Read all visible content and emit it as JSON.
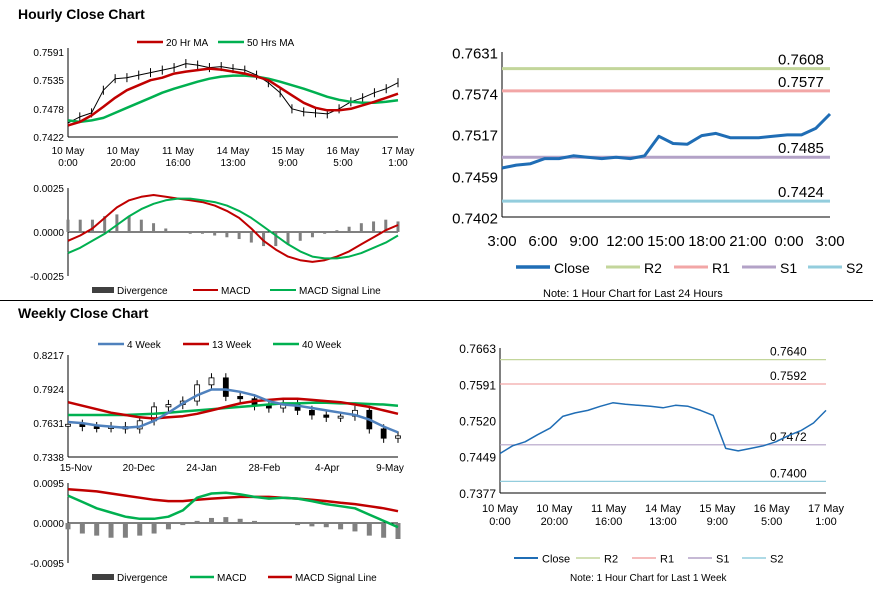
{
  "sections": {
    "hourly_title": "Hourly Close Chart",
    "weekly_title": "Weekly Close Chart"
  },
  "colors": {
    "ma_red": "#c00000",
    "ma_green": "#00b050",
    "ma_blue": "#4f81bd",
    "close_blue": "#1f6db5",
    "r2": "#c3d69b",
    "r1": "#f2a6a6",
    "s1": "#b3a2c7",
    "s2": "#93cddd",
    "divergence": "#808080"
  },
  "notes": {
    "hourly_note": "Note: 1 Hour Chart for Last 24 Hours",
    "weekly_note": "Note: 1 Hour Chart for Last 1 Week"
  },
  "chart_data": [
    {
      "id": "hourly-price",
      "type": "line",
      "title": "Hourly Close Chart",
      "x_ticks": [
        "10 May\n0:00",
        "10 May\n20:00",
        "11 May\n16:00",
        "14 May\n13:00",
        "15 May\n9:00",
        "16 May\n5:00",
        "17 May\n1:00"
      ],
      "y_ticks": [
        "0.7591",
        "0.7535",
        "0.7478",
        "0.7422"
      ],
      "ylim": [
        0.7422,
        0.7591
      ],
      "legend": [
        "20 Hr MA",
        "50 Hrs MA"
      ],
      "series": [
        {
          "name": "Close",
          "values": [
            0.745,
            0.7462,
            0.747,
            0.7515,
            0.7538,
            0.754,
            0.7545,
            0.755,
            0.7555,
            0.756,
            0.7568,
            0.7565,
            0.756,
            0.7562,
            0.7558,
            0.7555,
            0.7545,
            0.753,
            0.751,
            0.7478,
            0.7472,
            0.747,
            0.7468,
            0.7478,
            0.7492,
            0.75,
            0.751,
            0.7518,
            0.753
          ]
        },
        {
          "name": "20 Hr MA",
          "values": [
            0.7445,
            0.7452,
            0.7465,
            0.7482,
            0.75,
            0.7515,
            0.7525,
            0.7535,
            0.754,
            0.7548,
            0.7552,
            0.7555,
            0.7558,
            0.7556,
            0.7552,
            0.7548,
            0.7542,
            0.7535,
            0.752,
            0.7505,
            0.749,
            0.748,
            0.7475,
            0.7475,
            0.7478,
            0.7485,
            0.7492,
            0.75,
            0.7508
          ]
        },
        {
          "name": "50 Hrs MA",
          "values": [
            0.7455,
            0.7452,
            0.7455,
            0.746,
            0.747,
            0.748,
            0.749,
            0.75,
            0.751,
            0.7518,
            0.7525,
            0.7532,
            0.7538,
            0.7542,
            0.7544,
            0.7544,
            0.7542,
            0.7538,
            0.7532,
            0.7525,
            0.7518,
            0.751,
            0.7502,
            0.7496,
            0.7492,
            0.749,
            0.749,
            0.7492,
            0.7495
          ]
        }
      ]
    },
    {
      "id": "hourly-macd",
      "type": "line",
      "y_ticks": [
        "0.0025",
        "0.0000",
        "-0.0025"
      ],
      "ylim": [
        -0.0025,
        0.0025
      ],
      "legend": [
        "Divergence",
        "MACD",
        "MACD Signal Line"
      ],
      "series": [
        {
          "name": "MACD",
          "values": [
            -0.0005,
            -0.0002,
            0.0002,
            0.0008,
            0.0014,
            0.0018,
            0.002,
            0.0021,
            0.002,
            0.0019,
            0.0018,
            0.0017,
            0.0015,
            0.0012,
            0.0008,
            0.0002,
            -0.0005,
            -0.001,
            -0.0014,
            -0.0016,
            -0.0017,
            -0.0016,
            -0.0014,
            -0.0011,
            -0.0007,
            -0.0003,
            0.0001,
            0.0004
          ]
        },
        {
          "name": "MACD Signal Line",
          "values": [
            -0.0012,
            -0.0009,
            -0.0005,
            -0.0001,
            0.0004,
            0.0009,
            0.0013,
            0.0016,
            0.0018,
            0.0019,
            0.0019,
            0.0018,
            0.0017,
            0.0015,
            0.0012,
            0.0008,
            0.0003,
            -0.0002,
            -0.0007,
            -0.0011,
            -0.0014,
            -0.0015,
            -0.0015,
            -0.0014,
            -0.0012,
            -0.0009,
            -0.0006,
            -0.0002
          ]
        },
        {
          "name": "Divergence",
          "values": [
            0.0007,
            0.0007,
            0.0007,
            0.0009,
            0.001,
            0.0009,
            0.0007,
            0.0005,
            0.0002,
            0.0,
            -0.0001,
            -0.0001,
            -0.0002,
            -0.0003,
            -0.0004,
            -0.0006,
            -0.0008,
            -0.0008,
            -0.0007,
            -0.0005,
            -0.0003,
            -0.0001,
            0.0001,
            0.0003,
            0.0005,
            0.0006,
            0.0007,
            0.0006
          ]
        }
      ]
    },
    {
      "id": "hourly-24h",
      "type": "line",
      "x_ticks": [
        "3:00",
        "6:00",
        "9:00",
        "12:00",
        "15:00",
        "18:00",
        "21:00",
        "0:00",
        "3:00"
      ],
      "y_ticks": [
        "0.7631",
        "0.7574",
        "0.7517",
        "0.7459",
        "0.7402"
      ],
      "ylim": [
        0.7402,
        0.7631
      ],
      "levels": {
        "R2": "0.7608",
        "R1": "0.7577",
        "S1": "0.7485",
        "S2": "0.7424"
      },
      "legend": [
        "Close",
        "R2",
        "R1",
        "S1",
        "S2"
      ],
      "series": [
        {
          "name": "Close",
          "values": [
            0.747,
            0.7474,
            0.7476,
            0.7483,
            0.7483,
            0.7487,
            0.7485,
            0.7483,
            0.7485,
            0.7483,
            0.7487,
            0.7514,
            0.7504,
            0.7503,
            0.7515,
            0.7518,
            0.7512,
            0.7512,
            0.7512,
            0.7514,
            0.7516,
            0.7516,
            0.7525,
            0.7545
          ]
        }
      ]
    },
    {
      "id": "weekly-price",
      "type": "line",
      "title": "Weekly Close Chart",
      "x_ticks": [
        "15-Nov",
        "20-Dec",
        "24-Jan",
        "28-Feb",
        "4-Apr",
        "9-May"
      ],
      "y_ticks": [
        "0.8217",
        "0.7924",
        "0.7631",
        "0.7338"
      ],
      "ylim": [
        0.7338,
        0.8217
      ],
      "legend": [
        "4 Week",
        "13 Week",
        "40 Week"
      ],
      "series": [
        {
          "name": "Close",
          "values": [
            0.762,
            0.76,
            0.759,
            0.76,
            0.758,
            0.765,
            0.777,
            0.779,
            0.782,
            0.796,
            0.802,
            0.786,
            0.784,
            0.778,
            0.776,
            0.779,
            0.774,
            0.77,
            0.768,
            0.769,
            0.774,
            0.758,
            0.75,
            0.752
          ]
        },
        {
          "name": "4 Week",
          "values": [
            0.764,
            0.763,
            0.761,
            0.76,
            0.759,
            0.76,
            0.765,
            0.772,
            0.78,
            0.787,
            0.792,
            0.792,
            0.79,
            0.787,
            0.782,
            0.779,
            0.778,
            0.776,
            0.774,
            0.772,
            0.77,
            0.766,
            0.76,
            0.755
          ]
        },
        {
          "name": "13 Week",
          "values": [
            0.781,
            0.778,
            0.775,
            0.772,
            0.77,
            0.768,
            0.767,
            0.768,
            0.769,
            0.771,
            0.774,
            0.777,
            0.78,
            0.782,
            0.783,
            0.784,
            0.784,
            0.783,
            0.782,
            0.781,
            0.779,
            0.777,
            0.774,
            0.771
          ]
        },
        {
          "name": "40 Week",
          "values": [
            0.77,
            0.77,
            0.77,
            0.77,
            0.77,
            0.7705,
            0.771,
            0.772,
            0.773,
            0.774,
            0.775,
            0.776,
            0.777,
            0.778,
            0.779,
            0.78,
            0.78,
            0.7805,
            0.7805,
            0.78,
            0.78,
            0.7795,
            0.779,
            0.778
          ]
        }
      ]
    },
    {
      "id": "weekly-macd",
      "type": "line",
      "y_ticks": [
        "0.0095",
        "0.0000",
        "-0.0095"
      ],
      "ylim": [
        -0.0095,
        0.0095
      ],
      "legend": [
        "Divergence",
        "MACD",
        "MACD Signal Line"
      ],
      "series": [
        {
          "name": "MACD",
          "values": [
            0.0065,
            0.005,
            0.0035,
            0.0025,
            0.0015,
            0.001,
            0.001,
            0.0015,
            0.003,
            0.006,
            0.007,
            0.0072,
            0.0068,
            0.0062,
            0.0058,
            0.006,
            0.0058,
            0.0052,
            0.0045,
            0.004,
            0.0035,
            0.002,
            0.0005,
            -0.001
          ]
        },
        {
          "name": "MACD Signal Line",
          "values": [
            0.008,
            0.0078,
            0.0075,
            0.007,
            0.0065,
            0.006,
            0.0055,
            0.0052,
            0.0052,
            0.0055,
            0.0058,
            0.006,
            0.0062,
            0.0062,
            0.0062,
            0.006,
            0.0058,
            0.0055,
            0.0052,
            0.0048,
            0.0045,
            0.004,
            0.0035,
            0.0028
          ]
        },
        {
          "name": "Divergence",
          "values": [
            -0.0015,
            -0.0025,
            -0.003,
            -0.0035,
            -0.0035,
            -0.003,
            -0.0025,
            -0.0015,
            -0.0005,
            0.0005,
            0.0012,
            0.0014,
            0.001,
            0.0005,
            0.0,
            -0.0002,
            -0.0005,
            -0.0008,
            -0.001,
            -0.0015,
            -0.002,
            -0.003,
            -0.0035,
            -0.0038
          ]
        }
      ]
    },
    {
      "id": "weekly-1w",
      "type": "line",
      "x_ticks": [
        "10 May\n0:00",
        "10 May\n20:00",
        "11 May\n16:00",
        "14 May\n13:00",
        "15 May\n9:00",
        "16 May\n5:00",
        "17 May\n1:00"
      ],
      "y_ticks": [
        "0.7663",
        "0.7591",
        "0.7520",
        "0.7449",
        "0.7377"
      ],
      "ylim": [
        0.7377,
        0.7663
      ],
      "levels": {
        "R2": "0.7640",
        "R1": "0.7592",
        "S1": "0.7472",
        "S2": "0.7400"
      },
      "legend": [
        "Close",
        "R2",
        "R1",
        "S1",
        "S2"
      ],
      "series": [
        {
          "name": "Close",
          "values": [
            0.7455,
            0.747,
            0.7478,
            0.7492,
            0.7505,
            0.7528,
            0.7535,
            0.754,
            0.7548,
            0.7555,
            0.7552,
            0.755,
            0.7548,
            0.7545,
            0.755,
            0.7548,
            0.754,
            0.753,
            0.7465,
            0.746,
            0.7465,
            0.747,
            0.7478,
            0.749,
            0.75,
            0.7515,
            0.754
          ]
        }
      ]
    }
  ]
}
